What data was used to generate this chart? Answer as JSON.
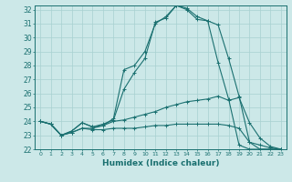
{
  "background_color": "#cce8e8",
  "grid_color": "#a8d0d0",
  "line_color": "#1a7070",
  "xlabel": "Humidex (Indice chaleur)",
  "xlim": [
    -0.5,
    23.5
  ],
  "ylim": [
    22,
    32.3
  ],
  "yticks": [
    22,
    23,
    24,
    25,
    26,
    27,
    28,
    29,
    30,
    31,
    32
  ],
  "xticks": [
    0,
    1,
    2,
    3,
    4,
    5,
    6,
    7,
    8,
    9,
    10,
    11,
    12,
    13,
    14,
    15,
    16,
    17,
    18,
    19,
    20,
    21,
    22,
    23
  ],
  "lines": [
    {
      "x": [
        0,
        1,
        2,
        3,
        4,
        5,
        6,
        7,
        8,
        9,
        10,
        11,
        12,
        13,
        14,
        15,
        16,
        17,
        18,
        19,
        20,
        21,
        22,
        23
      ],
      "y": [
        24.0,
        23.8,
        23.0,
        23.3,
        23.9,
        23.6,
        23.7,
        24.2,
        27.7,
        28.0,
        29.0,
        31.0,
        31.5,
        32.3,
        32.1,
        31.5,
        31.2,
        30.9,
        28.5,
        25.8,
        22.5,
        22.0,
        22.0,
        22.0
      ]
    },
    {
      "x": [
        0,
        1,
        2,
        3,
        4,
        5,
        6,
        7,
        8,
        9,
        10,
        11,
        12,
        13,
        14,
        15,
        16,
        17,
        18,
        19,
        20,
        21,
        22,
        23
      ],
      "y": [
        24.0,
        23.8,
        23.0,
        23.3,
        23.9,
        23.6,
        23.8,
        24.1,
        26.3,
        27.5,
        28.5,
        31.1,
        31.4,
        32.3,
        32.0,
        31.3,
        31.2,
        28.2,
        25.6,
        22.3,
        22.0,
        22.0,
        22.0,
        22.0
      ]
    },
    {
      "x": [
        0,
        1,
        2,
        3,
        4,
        5,
        6,
        7,
        8,
        9,
        10,
        11,
        12,
        13,
        14,
        15,
        16,
        17,
        18,
        19,
        20,
        21,
        22,
        23
      ],
      "y": [
        24.0,
        23.8,
        23.0,
        23.2,
        23.5,
        23.5,
        23.7,
        24.0,
        24.1,
        24.3,
        24.5,
        24.7,
        25.0,
        25.2,
        25.4,
        25.5,
        25.6,
        25.8,
        25.5,
        25.7,
        23.9,
        22.8,
        22.2,
        22.0
      ]
    },
    {
      "x": [
        0,
        1,
        2,
        3,
        4,
        5,
        6,
        7,
        8,
        9,
        10,
        11,
        12,
        13,
        14,
        15,
        16,
        17,
        18,
        19,
        20,
        21,
        22,
        23
      ],
      "y": [
        24.0,
        23.8,
        23.0,
        23.2,
        23.5,
        23.4,
        23.4,
        23.5,
        23.5,
        23.5,
        23.6,
        23.7,
        23.7,
        23.8,
        23.8,
        23.8,
        23.8,
        23.8,
        23.7,
        23.5,
        22.5,
        22.3,
        22.1,
        22.0
      ]
    }
  ]
}
